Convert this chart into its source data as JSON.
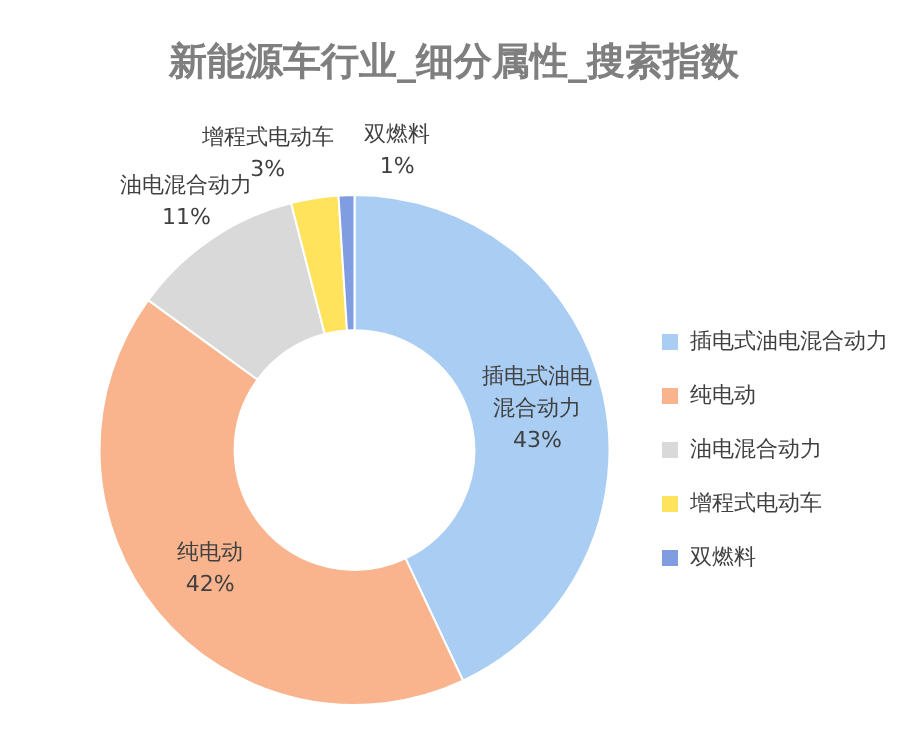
{
  "chart_data": {
    "type": "donut",
    "title": "新能源车行业_细分属性_搜索指数",
    "categories": [
      "插电式油电混合动力",
      "纯电动",
      "油电混合动力",
      "增程式电动车",
      "双燃料"
    ],
    "values": [
      43,
      42,
      11,
      3,
      1
    ],
    "colors": [
      "#a9cdf3",
      "#f9b48e",
      "#d9d9d9",
      "#ffe35c",
      "#7f9de0"
    ],
    "value_labels": [
      "43%",
      "42%",
      "11%",
      "3%",
      "1%"
    ],
    "legend": "right"
  }
}
